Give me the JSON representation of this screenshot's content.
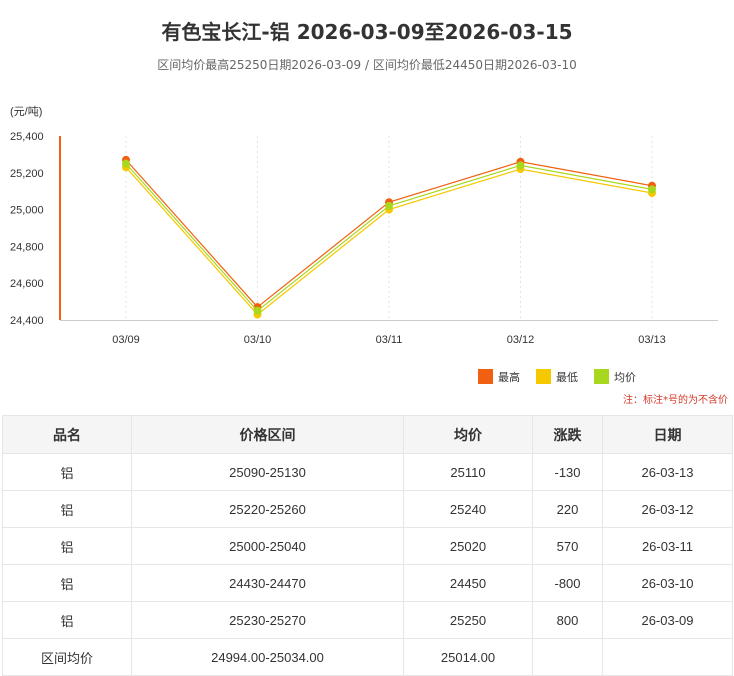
{
  "header": {
    "title": "有色宝长江-铝 2026-03-09至2026-03-15",
    "subtitle": "区间均价最高25250日期2026-03-09 / 区间均价最低24450日期2026-03-10"
  },
  "chart_data": {
    "type": "line",
    "unit_label": "(元/吨)",
    "categories": [
      "03/09",
      "03/10",
      "03/11",
      "03/12",
      "03/13"
    ],
    "series": [
      {
        "name": "最高",
        "color": "#f06010",
        "values": [
          25270,
          24470,
          25040,
          25260,
          25130
        ]
      },
      {
        "name": "最低",
        "color": "#f5c800",
        "values": [
          25230,
          24430,
          25000,
          25220,
          25090
        ]
      },
      {
        "name": "均价",
        "color": "#a8d81e",
        "values": [
          25250,
          24450,
          25020,
          25240,
          25110
        ]
      }
    ],
    "ylim": [
      24400,
      25400
    ],
    "yticks": [
      24400,
      24600,
      24800,
      25000,
      25200,
      25400
    ],
    "ytick_labels": [
      "24,400",
      "24,600",
      "24,800",
      "25,000",
      "25,200",
      "25,400"
    ],
    "grid": "vertical-dashed",
    "legend_position": "bottom-right",
    "note": "注：标注*号的为不含价"
  },
  "table": {
    "headers": [
      "品名",
      "价格区间",
      "均价",
      "涨跌",
      "日期"
    ],
    "rows": [
      [
        "铝",
        "25090-25130",
        "25110",
        "-130",
        "26-03-13"
      ],
      [
        "铝",
        "25220-25260",
        "25240",
        "220",
        "26-03-12"
      ],
      [
        "铝",
        "25000-25040",
        "25020",
        "570",
        "26-03-11"
      ],
      [
        "铝",
        "24430-24470",
        "24450",
        "-800",
        "26-03-10"
      ],
      [
        "铝",
        "25230-25270",
        "25250",
        "800",
        "26-03-09"
      ]
    ],
    "footer": [
      "区间均价",
      "24994.00-25034.00",
      "25014.00",
      "",
      ""
    ]
  }
}
